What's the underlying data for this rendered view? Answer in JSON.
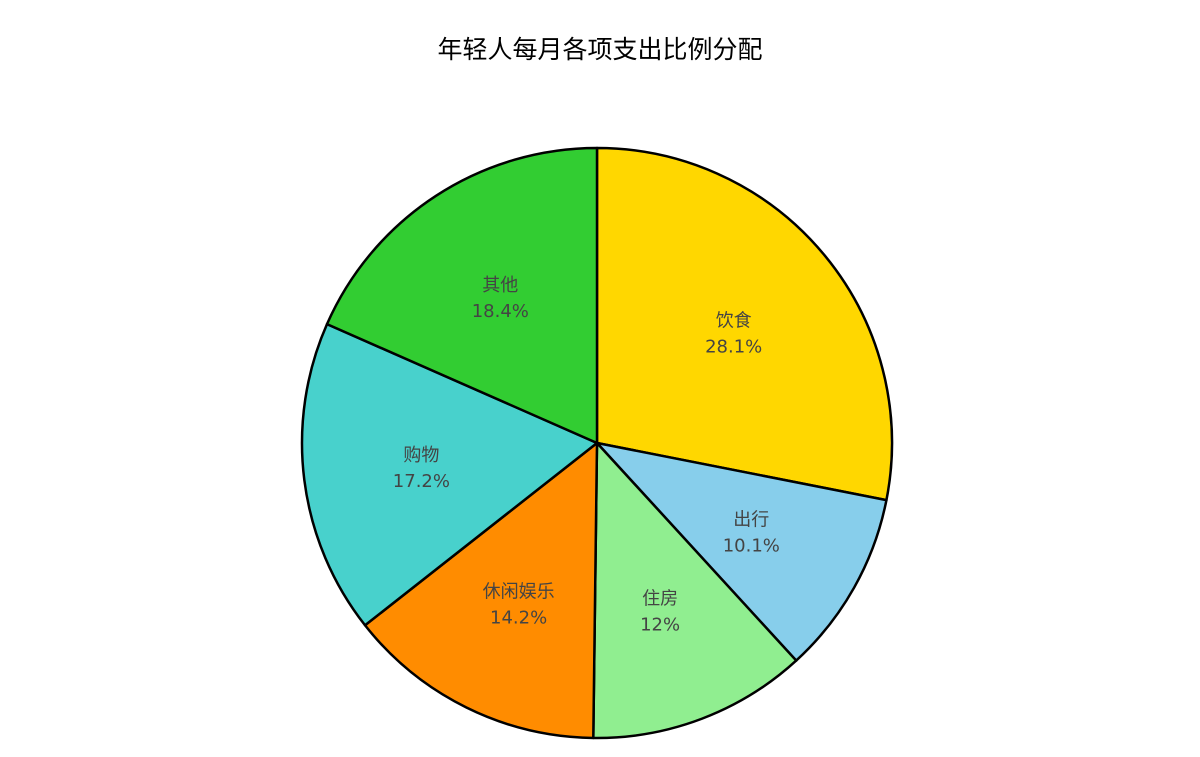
{
  "chart_data": {
    "type": "pie",
    "title": "年轻人每月各项支出比例分配",
    "slices": [
      {
        "label": "饮食",
        "value": 28.1,
        "display": "28.1%",
        "color": "#FFD700"
      },
      {
        "label": "出行",
        "value": 10.1,
        "display": "10.1%",
        "color": "#87CEEB"
      },
      {
        "label": "住房",
        "value": 12.0,
        "display": "12%",
        "color": "#90EE90"
      },
      {
        "label": "休闲娱乐",
        "value": 14.2,
        "display": "14.2%",
        "color": "#FF8C00"
      },
      {
        "label": "购物",
        "value": 17.2,
        "display": "17.2%",
        "color": "#48D1CC"
      },
      {
        "label": "其他",
        "value": 18.4,
        "display": "18.4%",
        "color": "#32CD32"
      }
    ],
    "start_angle_deg": 90,
    "direction": "clockwise",
    "slice_border_color": "#000000",
    "legend": "none"
  }
}
